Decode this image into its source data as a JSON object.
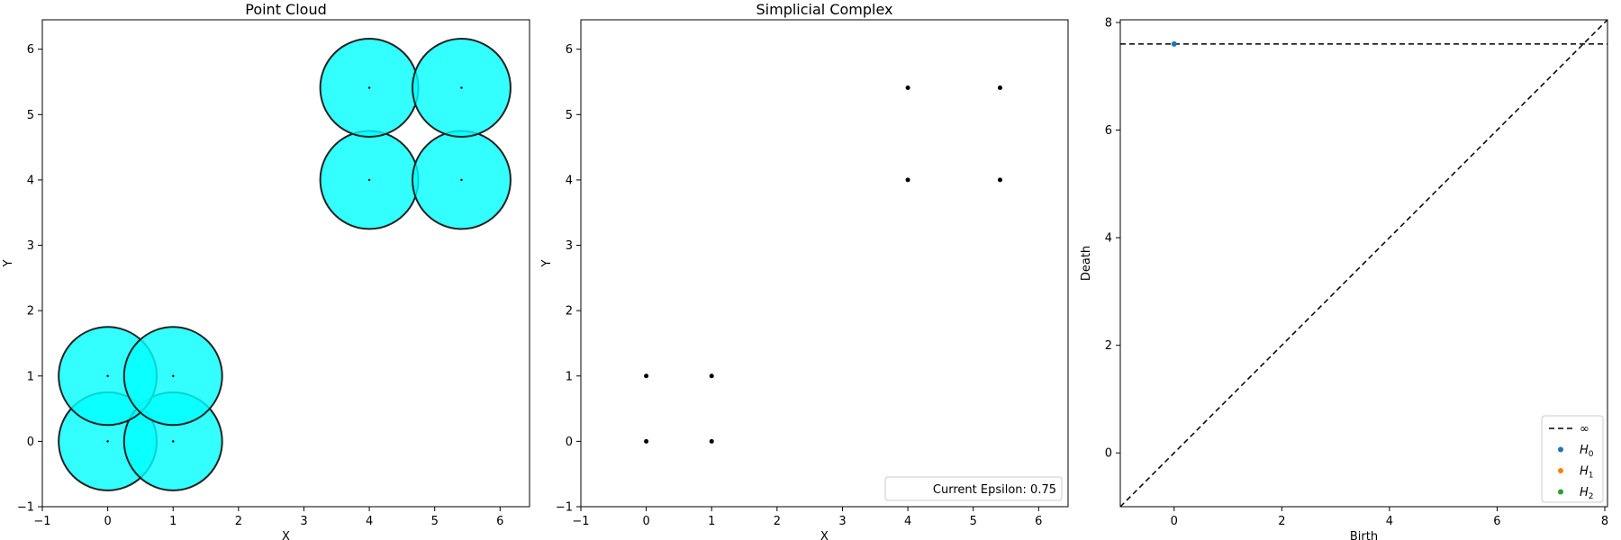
{
  "chart_data": [
    {
      "type": "scatter",
      "title": "Point Cloud",
      "xlabel": "X",
      "ylabel": "Y",
      "xlim": [
        -1,
        6.45
      ],
      "ylim": [
        -1,
        6.45
      ],
      "xticks": [
        -1,
        0,
        1,
        2,
        3,
        4,
        5,
        6
      ],
      "yticks": [
        -1,
        0,
        1,
        2,
        3,
        4,
        5,
        6
      ],
      "points": [
        [
          0,
          0
        ],
        [
          1,
          0
        ],
        [
          0,
          1
        ],
        [
          1,
          1
        ],
        [
          4,
          4
        ],
        [
          5.41,
          4
        ],
        [
          4,
          5.41
        ],
        [
          5.41,
          5.41
        ]
      ],
      "ball_radius": 0.75,
      "ball_color": "#00ffff",
      "ball_edge_color": "#222222"
    },
    {
      "type": "scatter",
      "title": "Simplicial Complex",
      "xlabel": "X",
      "ylabel": "Y",
      "xlim": [
        -1,
        6.45
      ],
      "ylim": [
        -1,
        6.45
      ],
      "xticks": [
        -1,
        0,
        1,
        2,
        3,
        4,
        5,
        6
      ],
      "yticks": [
        -1,
        0,
        1,
        2,
        3,
        4,
        5,
        6
      ],
      "points": [
        [
          0,
          0
        ],
        [
          1,
          0
        ],
        [
          0,
          1
        ],
        [
          1,
          1
        ],
        [
          4,
          4
        ],
        [
          5.41,
          4
        ],
        [
          4,
          5.41
        ],
        [
          5.41,
          5.41
        ]
      ],
      "annotation": "Current Epsilon: 0.75",
      "annotation_placement": "bottom-right"
    },
    {
      "type": "scatter",
      "title": "",
      "xlabel": "Birth",
      "ylabel": "Death",
      "xlim": [
        -1,
        8.05
      ],
      "ylim": [
        -1,
        8.05
      ],
      "xticks": [
        0,
        2,
        4,
        6,
        8
      ],
      "yticks": [
        0,
        2,
        4,
        6,
        8
      ],
      "infinity_line_y": 7.6,
      "diagonal": true,
      "series": [
        {
          "name": "H0",
          "sub": "0",
          "color": "#1f77b4",
          "points": [
            [
              0,
              7.6
            ]
          ]
        },
        {
          "name": "H1",
          "sub": "1",
          "color": "#ff7f0e",
          "points": []
        },
        {
          "name": "H2",
          "sub": "2",
          "color": "#2ca02c",
          "points": []
        }
      ],
      "legend_infinity": "∞",
      "legend_placement": "bottom-right"
    }
  ]
}
